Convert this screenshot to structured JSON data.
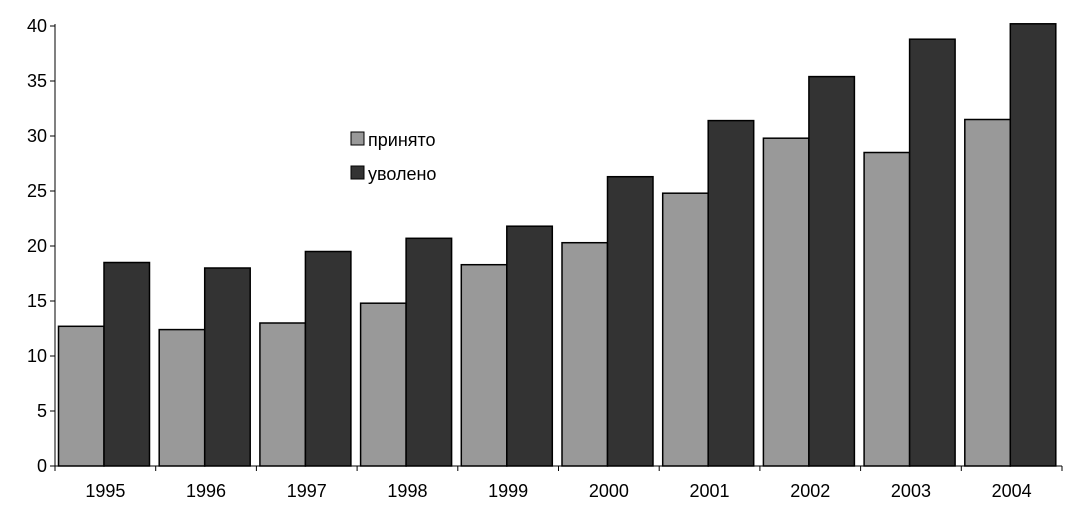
{
  "chart_data": {
    "type": "bar",
    "title": "",
    "xlabel": "",
    "ylabel": "",
    "ylim": [
      0,
      40
    ],
    "yticks": [
      0,
      5,
      10,
      15,
      20,
      25,
      30,
      35,
      40
    ],
    "grid": false,
    "legend_position": "center-left",
    "categories": [
      "1995",
      "1996",
      "1997",
      "1998",
      "1999",
      "2000",
      "2001",
      "2002",
      "2003",
      "2004"
    ],
    "series": [
      {
        "name": "принято",
        "color": "#999999",
        "values": [
          12.7,
          12.4,
          13.0,
          14.8,
          18.3,
          20.3,
          24.8,
          29.8,
          28.5,
          31.5
        ]
      },
      {
        "name": "уволено",
        "color": "#333333",
        "values": [
          18.5,
          18.0,
          19.5,
          20.7,
          21.8,
          26.3,
          31.4,
          35.4,
          38.8,
          40.2
        ]
      }
    ]
  }
}
